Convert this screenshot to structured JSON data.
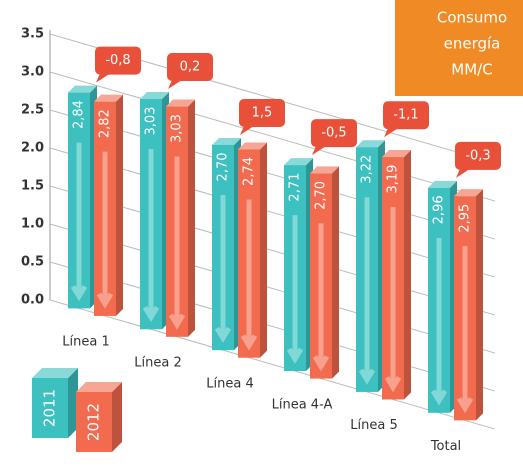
{
  "chart_data": {
    "type": "bar3d",
    "title": [
      "Consumo",
      "energía",
      "MM/C"
    ],
    "categories": [
      "Línea 1",
      "Línea 2",
      "Línea 4",
      "Línea 4-A",
      "Línea 5",
      "Total"
    ],
    "series": [
      {
        "name": "2011",
        "color": "#3cc0c0",
        "values": [
          2.84,
          3.03,
          2.7,
          2.71,
          3.22,
          2.96
        ],
        "value_labels": [
          "2,84",
          "3,03",
          "2,70",
          "2,71",
          "3,22",
          "2,96"
        ]
      },
      {
        "name": "2012",
        "color": "#f26b4e",
        "values": [
          2.82,
          3.03,
          2.74,
          2.7,
          3.19,
          2.95
        ],
        "value_labels": [
          "2,82",
          "3,03",
          "2,74",
          "2,70",
          "3,19",
          "2,95"
        ]
      }
    ],
    "annotations": [
      "-0,8",
      "0,2",
      "1,5",
      "-0,5",
      "-1,1",
      "-0,3"
    ],
    "ylim": [
      0,
      3.5
    ],
    "yticks": [
      {
        "value": 0,
        "label": "0.0"
      },
      0.5,
      {
        "value": 1,
        "label": "1.0"
      },
      1.5,
      {
        "value": 2,
        "label": "2.0"
      },
      2.5,
      {
        "value": 3,
        "label": "3.0"
      },
      3.5
    ],
    "grid": true
  }
}
